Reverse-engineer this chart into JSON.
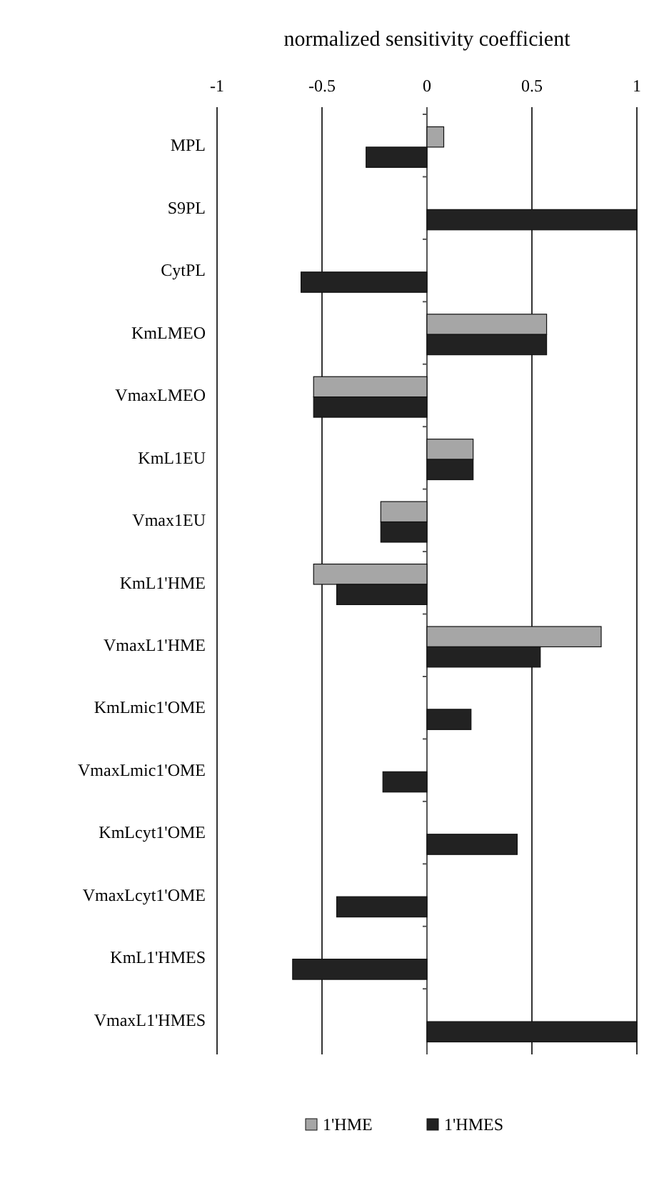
{
  "chart_data": {
    "type": "bar",
    "orientation": "horizontal",
    "title": "normalized sensitivity coefficient",
    "categories": [
      "MPL",
      "S9PL",
      "CytPL",
      "KmLMEO",
      "VmaxLMEO",
      "KmL1EU",
      "Vmax1EU",
      "KmL1'HME",
      "VmaxL1'HME",
      "KmLmic1'OME",
      "VmaxLmic1'OME",
      "KmLcyt1'OME",
      "VmaxLcyt1'OME",
      "KmL1'HMES",
      "VmaxL1'HMES"
    ],
    "series": [
      {
        "name": "1'HME",
        "color": "#a6a6a6",
        "values": [
          0.08,
          null,
          null,
          0.57,
          -0.54,
          0.22,
          -0.22,
          -0.54,
          0.83,
          null,
          null,
          null,
          null,
          null,
          null
        ]
      },
      {
        "name": "1'HMES",
        "color": "#222222",
        "values": [
          -0.29,
          1.0,
          -0.6,
          0.57,
          -0.54,
          0.22,
          -0.22,
          -0.43,
          0.54,
          0.21,
          -0.21,
          0.43,
          -0.43,
          -0.64,
          1.0
        ]
      }
    ],
    "xlim": [
      -1,
      1
    ],
    "xticks": [
      -1,
      -0.5,
      0,
      0.5,
      1
    ],
    "grid": "x",
    "legend": "bottom"
  }
}
